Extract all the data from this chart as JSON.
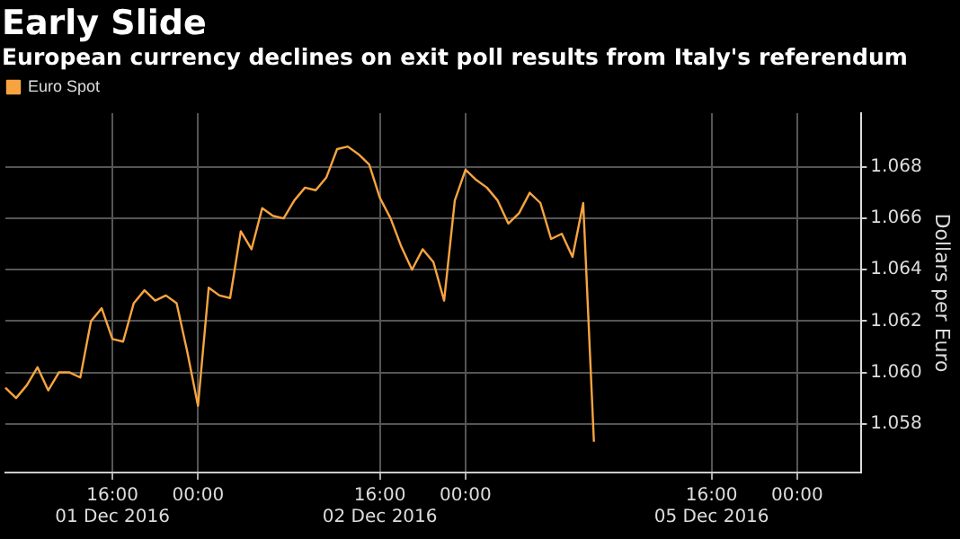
{
  "chart_data": {
    "type": "line",
    "title": "Early Slide",
    "subtitle": "European currency declines on exit poll results from Italy's referendum",
    "ylabel": "Dollars per Euro",
    "legend": "top left",
    "grid": true,
    "marker": "none",
    "line_style": "solid",
    "categories": [
      null,
      null,
      null,
      null,
      null,
      null,
      null,
      null,
      null,
      null,
      "16:00\n01 Dec 2016",
      null,
      null,
      null,
      null,
      null,
      null,
      null,
      "00:00",
      null,
      null,
      null,
      null,
      null,
      null,
      null,
      null,
      null,
      null,
      null,
      null,
      null,
      null,
      null,
      null,
      "16:00\n02 Dec 2016",
      null,
      null,
      null,
      null,
      null,
      null,
      null,
      "00:00",
      null,
      null,
      null,
      null,
      null,
      null,
      null,
      null,
      null,
      null,
      null,
      null,
      null,
      null,
      null,
      null,
      null,
      null,
      null,
      null,
      null,
      null,
      "16:00\n05 Dec 2016",
      null,
      null,
      null,
      null,
      null,
      null,
      null,
      "00:00",
      null,
      null,
      null,
      null,
      null,
      null
    ],
    "ylim": [
      1.0561,
      1.0701
    ],
    "yticks": [
      1.058,
      {
        "value": 1.06,
        "label": "1.060"
      },
      1.062,
      1.064,
      1.066,
      1.068
    ],
    "series": [
      {
        "name": "Euro Spot",
        "color": "#f7a440",
        "values": [
          1.0594,
          1.059,
          1.0595,
          1.0602,
          1.0593,
          1.06,
          1.06,
          1.0598,
          1.062,
          1.0625,
          1.0613,
          1.0612,
          1.0627,
          1.0632,
          1.0628,
          1.063,
          1.0627,
          1.0608,
          1.0587,
          1.0633,
          1.063,
          1.0629,
          1.0655,
          1.0648,
          1.0664,
          1.0661,
          1.066,
          1.0667,
          1.0672,
          1.0671,
          1.0676,
          1.0687,
          1.0688,
          1.0685,
          1.0681,
          1.0668,
          1.066,
          1.0649,
          1.064,
          1.0648,
          1.0643,
          1.0628,
          1.0667,
          1.0679,
          1.0675,
          1.0672,
          1.0667,
          1.0658,
          1.0662,
          1.067,
          1.0666,
          1.0652,
          1.0654,
          1.0645,
          1.0666,
          1.0573,
          null,
          null,
          null,
          null,
          null,
          null,
          null,
          null,
          null,
          null,
          null,
          null,
          null,
          null,
          null,
          null,
          null,
          null,
          null,
          null,
          null,
          null,
          null,
          null,
          null
        ]
      }
    ]
  }
}
